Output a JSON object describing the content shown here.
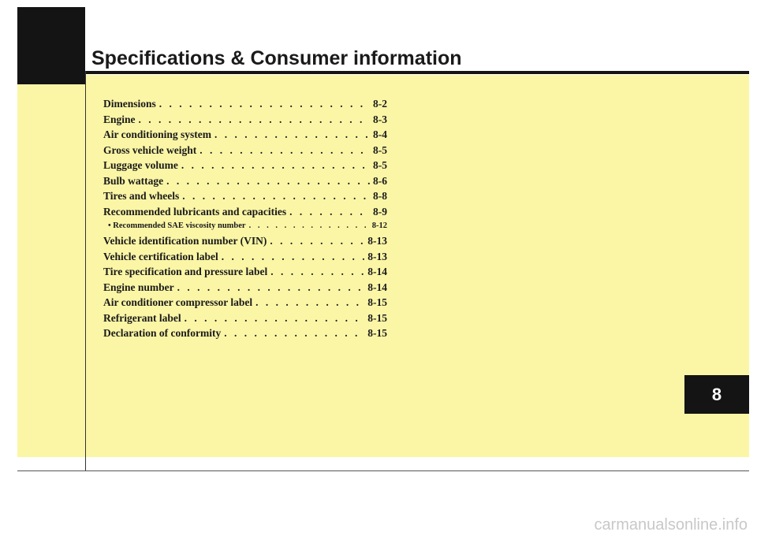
{
  "header": {
    "title": "Specifications & Consumer information"
  },
  "toc": [
    {
      "title": "Dimensions",
      "page": "8-2"
    },
    {
      "title": "Engine",
      "page": "8-3"
    },
    {
      "title": "Air conditioning system",
      "page": "8-4"
    },
    {
      "title": "Gross vehicle weight",
      "page": "8-5"
    },
    {
      "title": "Luggage volume",
      "page": "8-5"
    },
    {
      "title": "Bulb wattage",
      "page": "8-6"
    },
    {
      "title": "Tires and wheels",
      "page": "8-8"
    },
    {
      "title": "Recommended lubricants and capacities",
      "page": "8-9"
    },
    {
      "title": "• Recommended SAE viscosity number",
      "page": "8-12"
    },
    {
      "title": "Vehicle identification number (VIN)",
      "page": "8-13"
    },
    {
      "title": "Vehicle certification label",
      "page": "8-13"
    },
    {
      "title": "Tire specification and pressure label",
      "page": "8-14"
    },
    {
      "title": "Engine number",
      "page": "8-14"
    },
    {
      "title": "Air conditioner compressor label",
      "page": "8-15"
    },
    {
      "title": "Refrigerant label",
      "page": "8-15"
    },
    {
      "title": "Declaration of conformity",
      "page": "8-15"
    }
  ],
  "chapter_tab": {
    "number": "8"
  },
  "watermark": "carmanualsonline.info",
  "colors": {
    "panel": "#fbf6a6",
    "tab": "#141414",
    "text": "#1a1a1a"
  }
}
